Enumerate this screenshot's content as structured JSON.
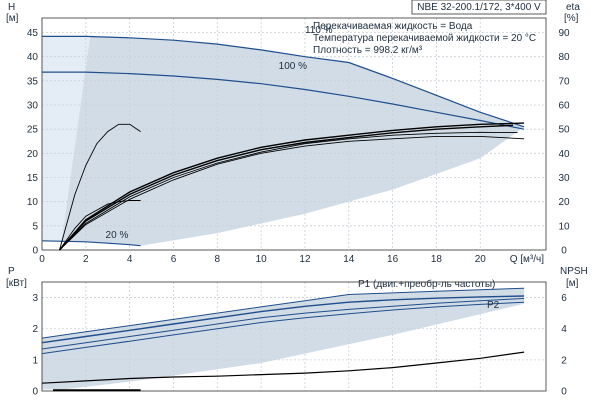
{
  "chart_data": [
    {
      "type": "line",
      "title": "NBE 32-200.1/172, 3*400 V",
      "annotations": [
        "Перекачиваемая жидкость = Вода",
        "Температура перекачиваемой жидкости = 20 °C",
        "Плотность = 998.2 кг/м³"
      ],
      "xlabel": "Q [м³/ч]",
      "xlim": [
        0,
        23
      ],
      "xticks": [
        0,
        2,
        4,
        6,
        8,
        10,
        12,
        14,
        16,
        18,
        20
      ],
      "ylabel_left": [
        "H",
        "[м]"
      ],
      "ylim_left": [
        0,
        48
      ],
      "yticks_left": [
        0,
        5,
        10,
        15,
        20,
        25,
        30,
        35,
        40,
        45
      ],
      "ylabel_right": [
        "eta",
        "[%]"
      ],
      "ylim_right": [
        0,
        96
      ],
      "yticks_right": [
        0,
        10,
        20,
        30,
        40,
        50,
        60,
        70,
        80,
        90
      ],
      "grid": true,
      "series": [
        {
          "name": "110 %",
          "axis": "left",
          "color": "#1f4e8c",
          "x": [
            0,
            2,
            4,
            6,
            8,
            10,
            12,
            14,
            16,
            18,
            20,
            22
          ],
          "y": [
            44.2,
            44.2,
            43.9,
            43.4,
            42.6,
            41.4,
            40.0,
            38.8,
            35.5,
            32.0,
            28.5,
            25.5
          ]
        },
        {
          "name": "100 %",
          "axis": "left",
          "color": "#1f4e8c",
          "x": [
            0,
            2,
            4,
            6,
            8,
            10,
            12,
            14,
            16,
            18,
            20,
            22
          ],
          "y": [
            36.8,
            36.8,
            36.5,
            36.0,
            35.3,
            34.4,
            33.2,
            31.8,
            30.2,
            28.5,
            26.8,
            25.0
          ]
        },
        {
          "name": "20 %",
          "axis": "left",
          "color": "#1f4e8c",
          "x": [
            0,
            1,
            2,
            3,
            4,
            4.5
          ],
          "y": [
            1.9,
            1.8,
            1.7,
            1.4,
            1.1,
            0.9
          ]
        },
        {
          "name": "",
          "axis": "right",
          "color": "#000000",
          "x": [
            0.8,
            2,
            4,
            6,
            8,
            10,
            12,
            14,
            16,
            18,
            20,
            21.5
          ],
          "y": [
            0,
            12,
            23,
            31,
            37,
            41.5,
            44.5,
            46.5,
            48.5,
            50,
            51,
            51.6
          ]
        },
        {
          "name": "",
          "axis": "right",
          "color": "#000000",
          "x": [
            0.8,
            2,
            4,
            6,
            8,
            10,
            12,
            14,
            16,
            18,
            20,
            22
          ],
          "y": [
            0,
            10.5,
            21,
            29,
            35.5,
            40,
            43,
            45,
            46,
            47,
            47,
            46
          ]
        },
        {
          "name": "",
          "axis": "right",
          "color": "#000000",
          "x": [
            0.8,
            2,
            4,
            6,
            8,
            10,
            12,
            14,
            16,
            18,
            20,
            21.7
          ],
          "y": [
            0,
            11,
            22,
            30,
            36,
            40.5,
            44,
            46,
            47.5,
            48.3,
            48.7,
            48.6
          ]
        },
        {
          "name": "",
          "axis": "right",
          "color": "#000000",
          "x": [
            0.8,
            2,
            4,
            6,
            8,
            10,
            12,
            14,
            16,
            18,
            20,
            22
          ],
          "y": [
            0,
            12.5,
            24,
            32,
            38,
            42.5,
            45.5,
            47.5,
            49.5,
            51,
            52,
            52.5
          ]
        },
        {
          "name": "",
          "axis": "right",
          "color": "#000000",
          "x": [
            0.8,
            1.5,
            2,
            3,
            3.5,
            4,
            4.5
          ],
          "y": [
            0,
            9,
            14,
            19,
            20,
            20.5,
            20.5
          ]
        },
        {
          "name": "",
          "axis": "right",
          "color": "#000000",
          "x": [
            0.8,
            1.5,
            2,
            2.5,
            3,
            3.5,
            4,
            4.5
          ],
          "y": [
            0,
            23,
            35,
            44,
            49,
            52,
            52,
            49
          ]
        }
      ]
    },
    {
      "type": "line",
      "ylabel_left": [
        "P",
        "[кВт]"
      ],
      "ylim_left": [
        0,
        3.5
      ],
      "yticks_left": [
        0,
        1,
        2,
        3
      ],
      "ylabel_right": [
        "NPSH",
        "[м]"
      ],
      "ylim_right": [
        0,
        7
      ],
      "yticks_right": [
        0,
        2,
        4,
        6
      ],
      "xlim": [
        0,
        23
      ],
      "grid": true,
      "labels": [
        "P1 (двиг.+преобр-ль частоты)",
        "P2"
      ],
      "series": [
        {
          "name": "P1 (двиг.+преобр-ль частоты)",
          "axis": "left",
          "color": "#1f4e8c",
          "x": [
            0,
            2,
            4,
            6,
            8,
            10,
            12,
            14,
            16,
            18,
            20,
            22
          ],
          "y": [
            1.55,
            1.75,
            1.95,
            2.15,
            2.35,
            2.55,
            2.72,
            2.85,
            2.93,
            2.98,
            3.02,
            3.05
          ]
        },
        {
          "name": "P2",
          "axis": "left",
          "color": "#1f4e8c",
          "x": [
            0,
            2,
            4,
            6,
            8,
            10,
            12,
            14,
            16,
            18,
            20,
            22
          ],
          "y": [
            1.2,
            1.4,
            1.6,
            1.8,
            2.0,
            2.2,
            2.35,
            2.48,
            2.6,
            2.7,
            2.78,
            2.85
          ]
        },
        {
          "name": "",
          "axis": "left",
          "color": "#1f4e8c",
          "x": [
            0,
            2,
            4,
            6,
            8,
            10,
            12,
            14,
            16,
            18,
            20,
            22
          ],
          "y": [
            1.35,
            1.55,
            1.75,
            1.95,
            2.15,
            2.35,
            2.5,
            2.62,
            2.72,
            2.82,
            2.9,
            2.97
          ]
        },
        {
          "name": "",
          "axis": "left",
          "color": "#1f4e8c",
          "x": [
            0,
            2,
            4,
            6,
            8,
            10,
            12,
            14,
            16,
            18,
            20,
            22
          ],
          "y": [
            1.7,
            1.9,
            2.1,
            2.3,
            2.5,
            2.7,
            2.9,
            3.1,
            3.15,
            3.2,
            3.25,
            3.3
          ]
        },
        {
          "name": "",
          "axis": "right",
          "color": "#000000",
          "x": [
            0,
            2,
            4,
            6,
            8,
            10,
            12,
            14,
            16,
            18,
            20,
            22
          ],
          "y": [
            0.5,
            0.65,
            0.8,
            0.9,
            0.95,
            1.05,
            1.15,
            1.3,
            1.5,
            1.8,
            2.1,
            2.5
          ]
        },
        {
          "name": "",
          "axis": "right",
          "color": "#000000",
          "x": [
            0.5,
            4.5
          ],
          "y": [
            0.05,
            0.05
          ]
        }
      ]
    }
  ]
}
